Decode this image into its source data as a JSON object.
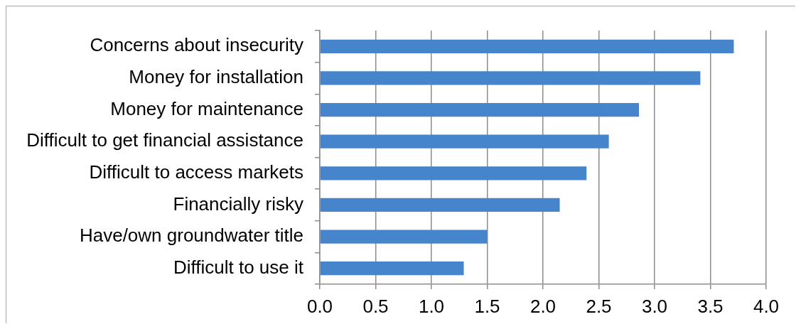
{
  "chart_data": {
    "type": "bar",
    "orientation": "horizontal",
    "categories": [
      "Concerns about insecurity",
      "Money for installation",
      "Money for maintenance",
      "Difficult to get financial assistance",
      "Difficult to access markets",
      "Financially risky",
      "Have/own groundwater title",
      "Difficult to use it"
    ],
    "values": [
      3.71,
      3.41,
      2.86,
      2.59,
      2.39,
      2.15,
      1.5,
      1.29
    ],
    "color": "#4684cb",
    "xlim": [
      0,
      4
    ],
    "xticks": [
      {
        "value": 0,
        "label": "0.0"
      },
      0.5,
      {
        "value": 1,
        "label": "1.0"
      },
      1.5,
      {
        "value": 2,
        "label": "2.0"
      },
      2.5,
      {
        "value": 3,
        "label": "3.0"
      },
      3.5,
      {
        "value": 4,
        "label": "4.0"
      }
    ],
    "grid": "x"
  }
}
